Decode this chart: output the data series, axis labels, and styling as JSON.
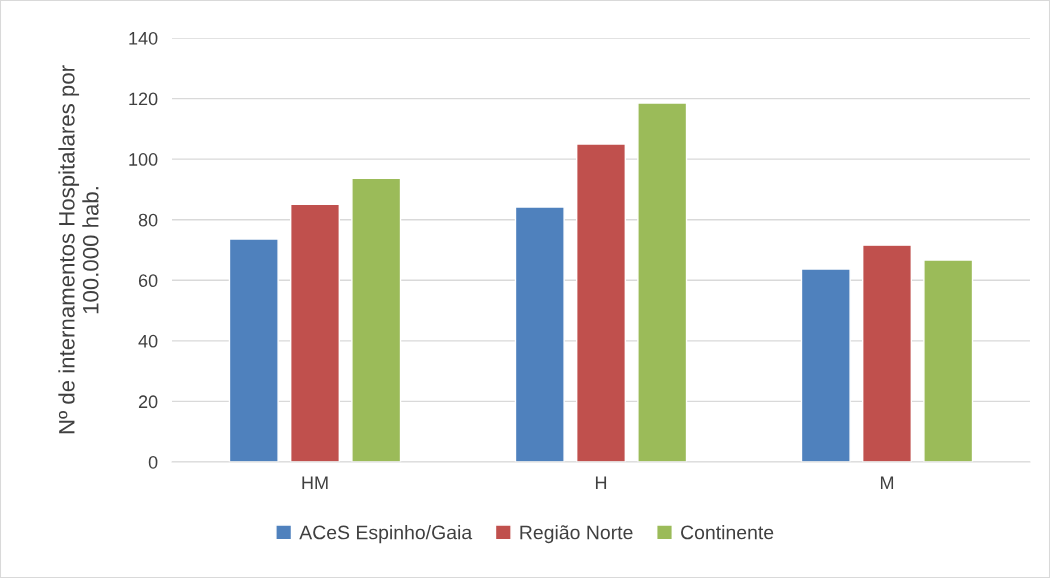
{
  "chart_data": {
    "type": "bar",
    "ylabel": "Nº de internamentos Hospitalares por\n100.000 hab.",
    "categories": [
      "HM",
      "H",
      "M"
    ],
    "series": [
      {
        "name": "ACeS Espinho/Gaia",
        "color": "#4f81bd",
        "values": [
          73.6,
          84.2,
          63.7
        ]
      },
      {
        "name": "Região Norte",
        "color": "#c0504d",
        "values": [
          85.1,
          105,
          71.6
        ]
      },
      {
        "name": "Continente",
        "color": "#9bbb59",
        "values": [
          93.7,
          118.5,
          66.7
        ]
      }
    ],
    "ylim": [
      0,
      140
    ],
    "yticks": [
      0,
      20,
      40,
      60,
      80,
      100,
      120,
      140
    ],
    "grid": "y",
    "legend": "bottom"
  }
}
